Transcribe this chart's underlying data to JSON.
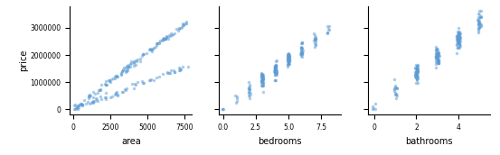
{
  "ylabel": "price",
  "xlabels": [
    "area",
    "bedrooms",
    "bathrooms"
  ],
  "dot_color": "#5B9BD5",
  "dot_alpha": 0.5,
  "dot_size": 6,
  "area_xlim": [
    -200,
    8000
  ],
  "price_ylim": [
    -200000,
    3800000
  ],
  "bedrooms_xlim": [
    -0.3,
    9.0
  ],
  "bathrooms_xlim": [
    -0.3,
    5.5
  ],
  "area_xticks": [
    0,
    2500,
    5000,
    7500
  ],
  "bedrooms_xticks": [
    0.0,
    2.5,
    5.0,
    7.5
  ],
  "bathrooms_xticks": [
    0,
    2,
    4
  ],
  "price_yticks": [
    0,
    1000000,
    2000000,
    3000000
  ]
}
